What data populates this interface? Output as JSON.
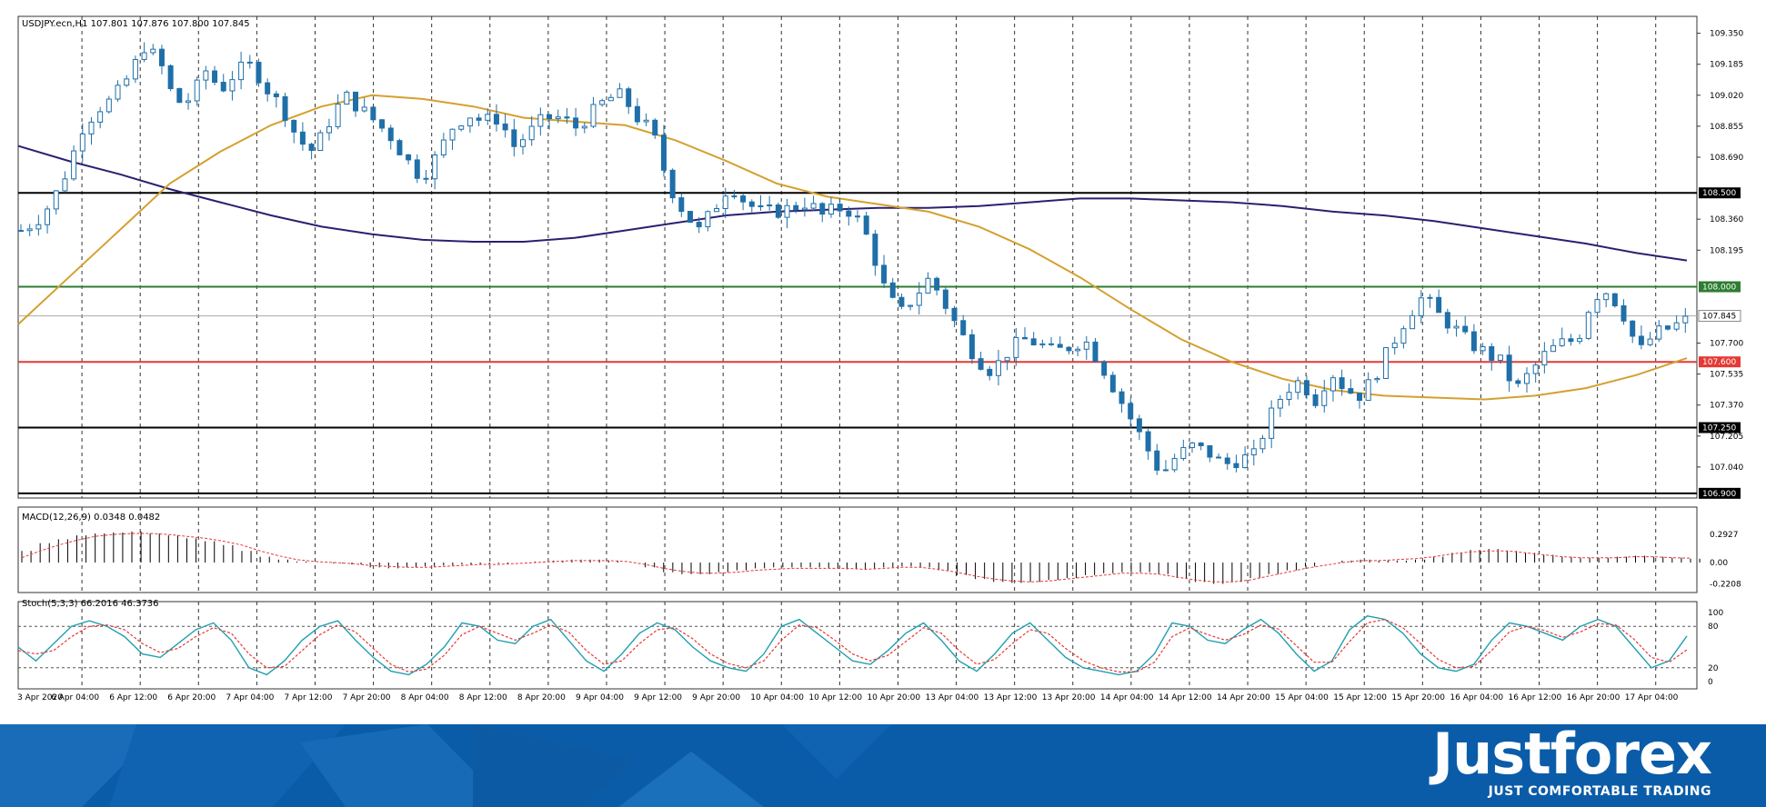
{
  "chart_data": {
    "type": "candlestick",
    "symbol_info": "USDJPY.ecn,H1  107.801 107.876 107.800 107.845",
    "price_axis": {
      "ylim": [
        106.875,
        109.44
      ],
      "ticks": [
        "109.350",
        "109.185",
        "109.020",
        "108.855",
        "108.690",
        "108.360",
        "108.195",
        "107.700",
        "107.535",
        "107.370",
        "107.205",
        "107.040"
      ]
    },
    "levels": [
      {
        "price": 108.5,
        "label": "108.500",
        "color": "#000000"
      },
      {
        "price": 108.0,
        "label": "108.000",
        "color": "#2e7d32"
      },
      {
        "price": 107.845,
        "label": "107.845",
        "color": "#aaaaaa"
      },
      {
        "price": 107.6,
        "label": "107.600",
        "color": "#e53935"
      },
      {
        "price": 107.25,
        "label": "107.250",
        "color": "#000000"
      },
      {
        "price": 106.9,
        "label": "106.900",
        "color": "#000000"
      }
    ],
    "time_axis": [
      "3 Apr 2020",
      "6 Apr 04:00",
      "6 Apr 12:00",
      "6 Apr 20:00",
      "7 Apr 04:00",
      "7 Apr 12:00",
      "7 Apr 20:00",
      "8 Apr 04:00",
      "8 Apr 12:00",
      "8 Apr 20:00",
      "9 Apr 04:00",
      "9 Apr 12:00",
      "9 Apr 20:00",
      "10 Apr 04:00",
      "10 Apr 12:00",
      "10 Apr 20:00",
      "13 Apr 04:00",
      "13 Apr 12:00",
      "13 Apr 20:00",
      "14 Apr 04:00",
      "14 Apr 12:00",
      "14 Apr 20:00",
      "15 Apr 04:00",
      "15 Apr 12:00",
      "15 Apr 20:00",
      "16 Apr 04:00",
      "16 Apr 12:00",
      "16 Apr 20:00",
      "17 Apr 04:00"
    ],
    "close_path": [
      108.3,
      108.35,
      108.45,
      108.62,
      108.85,
      108.95,
      109.0,
      109.12,
      109.28,
      109.2,
      108.98,
      109.0,
      109.15,
      109.05,
      109.15,
      109.18,
      109.05,
      108.95,
      108.78,
      108.72,
      108.88,
      109.02,
      108.95,
      108.88,
      108.8,
      108.68,
      108.58,
      108.7,
      108.85,
      108.92,
      108.88,
      108.9,
      108.75,
      108.82,
      108.9,
      108.9,
      108.85,
      108.92,
      109.0,
      109.02,
      108.9,
      108.82,
      108.55,
      108.4,
      108.3,
      108.42,
      108.55,
      108.45,
      108.4,
      108.4,
      108.42,
      108.45,
      108.38,
      108.42,
      108.4,
      108.25,
      108.0,
      107.85,
      107.95,
      108.05,
      107.9,
      107.75,
      107.62,
      107.55,
      107.65,
      107.72,
      107.7,
      107.65,
      107.68,
      107.72,
      107.6,
      107.45,
      107.3,
      107.15,
      107.0,
      107.1,
      107.15,
      107.12,
      107.05,
      107.08,
      107.1,
      107.3,
      107.45,
      107.5,
      107.4,
      107.55,
      107.45,
      107.42,
      107.55,
      107.7,
      107.85,
      107.95,
      107.85,
      107.78,
      107.7,
      107.65,
      107.6,
      107.45,
      107.55,
      107.65,
      107.7,
      107.72,
      107.95,
      107.98,
      107.85,
      107.65,
      107.75,
      107.78,
      107.82
    ],
    "ma50": {
      "color": "#d4a030",
      "values": [
        107.8,
        108.05,
        108.3,
        108.55,
        108.72,
        108.86,
        108.96,
        109.02,
        109.0,
        108.96,
        108.9,
        108.88,
        108.86,
        108.78,
        108.67,
        108.55,
        108.48,
        108.44,
        108.4,
        108.32,
        108.2,
        108.05,
        107.88,
        107.72,
        107.6,
        107.51,
        107.45,
        107.42,
        107.41,
        107.4,
        107.42,
        107.46,
        107.53,
        107.62
      ]
    },
    "ma200": {
      "color": "#2a2070",
      "values": [
        108.75,
        108.67,
        108.6,
        108.52,
        108.45,
        108.38,
        108.32,
        108.28,
        108.25,
        108.24,
        108.24,
        108.26,
        108.3,
        108.34,
        108.38,
        108.4,
        108.41,
        108.42,
        108.42,
        108.43,
        108.45,
        108.47,
        108.47,
        108.46,
        108.45,
        108.43,
        108.4,
        108.38,
        108.35,
        108.31,
        108.27,
        108.23,
        108.18,
        108.14
      ]
    },
    "macd": {
      "label": "MACD(12,26,9) 0.0348 0.0482",
      "ticks": [
        "0.2927",
        "0.00",
        "-0.2208"
      ],
      "hist": [
        0.12,
        0.2,
        0.24,
        0.28,
        0.3,
        0.31,
        0.32,
        0.3,
        0.28,
        0.25,
        0.22,
        0.18,
        0.12,
        0.06,
        0.03,
        0.01,
        0.0,
        -0.01,
        -0.02,
        -0.05,
        -0.06,
        -0.05,
        -0.04,
        -0.03,
        -0.02,
        -0.02,
        -0.01,
        0.0,
        0.01,
        0.02,
        0.03,
        0.03,
        0.02,
        0.0,
        -0.05,
        -0.1,
        -0.12,
        -0.12,
        -0.1,
        -0.08,
        -0.06,
        -0.05,
        -0.05,
        -0.05,
        -0.06,
        -0.07,
        -0.07,
        -0.05,
        -0.04,
        -0.05,
        -0.08,
        -0.13,
        -0.17,
        -0.2,
        -0.21,
        -0.2,
        -0.18,
        -0.16,
        -0.13,
        -0.11,
        -0.1,
        -0.1,
        -0.12,
        -0.16,
        -0.2,
        -0.22,
        -0.2,
        -0.16,
        -0.12,
        -0.08,
        -0.04,
        0.0,
        0.02,
        0.03,
        0.02,
        0.02,
        0.03,
        0.06,
        0.1,
        0.13,
        0.14,
        0.12,
        0.1,
        0.08,
        0.06,
        0.05,
        0.05,
        0.06,
        0.07,
        0.06,
        0.05,
        0.04
      ],
      "signal": [
        0.05,
        0.12,
        0.18,
        0.23,
        0.27,
        0.29,
        0.3,
        0.3,
        0.29,
        0.27,
        0.25,
        0.22,
        0.18,
        0.12,
        0.07,
        0.03,
        0.01,
        0.0,
        -0.01,
        -0.03,
        -0.04,
        -0.05,
        -0.05,
        -0.04,
        -0.03,
        -0.02,
        -0.02,
        -0.01,
        0.0,
        0.01,
        0.02,
        0.02,
        0.02,
        0.01,
        -0.02,
        -0.06,
        -0.09,
        -0.11,
        -0.11,
        -0.1,
        -0.08,
        -0.07,
        -0.06,
        -0.06,
        -0.06,
        -0.06,
        -0.07,
        -0.06,
        -0.05,
        -0.05,
        -0.07,
        -0.1,
        -0.14,
        -0.17,
        -0.19,
        -0.2,
        -0.19,
        -0.17,
        -0.15,
        -0.13,
        -0.11,
        -0.11,
        -0.12,
        -0.15,
        -0.18,
        -0.2,
        -0.2,
        -0.18,
        -0.14,
        -0.1,
        -0.06,
        -0.03,
        0.0,
        0.02,
        0.02,
        0.03,
        0.04,
        0.06,
        0.09,
        0.11,
        0.12,
        0.12,
        0.1,
        0.08,
        0.06,
        0.05,
        0.05,
        0.05,
        0.06,
        0.06,
        0.05,
        0.045
      ]
    },
    "stoch": {
      "label": "Stoch(5,3,3) 66.2016 46.3736",
      "ticks": [
        "100",
        "80",
        "20",
        "0"
      ],
      "k": [
        50,
        30,
        55,
        80,
        88,
        80,
        65,
        40,
        35,
        55,
        75,
        85,
        60,
        20,
        10,
        30,
        60,
        80,
        88,
        60,
        35,
        15,
        10,
        25,
        50,
        85,
        80,
        60,
        55,
        80,
        90,
        60,
        30,
        15,
        40,
        70,
        85,
        75,
        50,
        30,
        20,
        15,
        40,
        80,
        90,
        70,
        50,
        30,
        25,
        45,
        70,
        85,
        60,
        30,
        15,
        40,
        70,
        85,
        60,
        35,
        20,
        15,
        10,
        15,
        40,
        85,
        80,
        60,
        55,
        75,
        90,
        70,
        40,
        15,
        30,
        75,
        95,
        90,
        70,
        40,
        20,
        15,
        25,
        60,
        85,
        80,
        70,
        60,
        80,
        90,
        80,
        50,
        20,
        30,
        66
      ],
      "d": [
        45,
        40,
        45,
        65,
        80,
        82,
        75,
        55,
        42,
        48,
        65,
        78,
        70,
        40,
        20,
        22,
        45,
        68,
        82,
        72,
        48,
        25,
        14,
        18,
        38,
        68,
        80,
        70,
        60,
        70,
        82,
        72,
        45,
        25,
        30,
        55,
        75,
        78,
        62,
        40,
        26,
        20,
        30,
        60,
        82,
        78,
        60,
        40,
        30,
        38,
        58,
        78,
        70,
        45,
        25,
        32,
        55,
        75,
        70,
        48,
        30,
        20,
        14,
        14,
        28,
        65,
        78,
        68,
        60,
        68,
        82,
        76,
        52,
        28,
        28,
        58,
        85,
        90,
        78,
        55,
        32,
        20,
        22,
        45,
        72,
        80,
        74,
        64,
        72,
        84,
        82,
        62,
        35,
        28,
        46
      ]
    }
  },
  "brand": {
    "name": "Justforex",
    "tagline": "JUST COMFORTABLE TRADING"
  }
}
